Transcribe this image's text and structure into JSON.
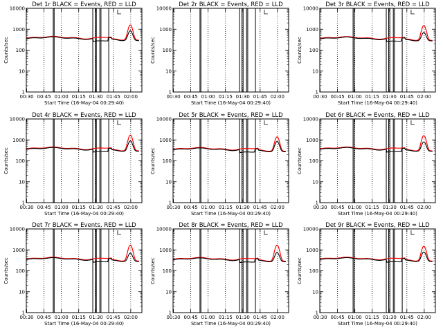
{
  "colors": {
    "events": "#000000",
    "lld": "#ff0000",
    "background": "#ffffff"
  },
  "chart_data": {
    "type": "line",
    "grid": "3x3",
    "shared": {
      "xlabel": "Start Time (16-May-04 00:29:40)",
      "ylabel": "Counts/sec",
      "x_tick_labels": [
        "00:30",
        "00:45",
        "01:00",
        "01:15",
        "01:30",
        "01:45",
        "02:00"
      ],
      "x_tick_minutes": [
        0.33,
        15.33,
        30.33,
        45.33,
        60.33,
        75.33,
        90.33
      ],
      "xlim_minutes": [
        0,
        100
      ],
      "y_scale": "log",
      "ylim": [
        1,
        10000
      ],
      "y_tick_labels": [
        "1",
        "10",
        "100",
        "1000",
        "10000"
      ],
      "y_tick_values": [
        1,
        10,
        100,
        1000,
        10000
      ],
      "dotted_vlines_minutes": [
        15.33,
        30.33,
        45.33,
        60.33,
        75.33,
        90.33
      ],
      "series_names": [
        "Events",
        "LLD"
      ]
    },
    "panels": [
      {
        "title": "Det 1r BLACK = Events, RED = LLD",
        "black_baseline": 380,
        "red_baseline": 400,
        "red_peak": 1600,
        "black_peak": 850,
        "has_data": true,
        "lines_minutes": [
          23.3,
          24.1,
          57.5,
          59.6,
          60.6,
          63.6,
          64.6,
          71.3
        ]
      },
      {
        "title": "Det 2r BLACK = Events, RED = LLD",
        "black_baseline": 0,
        "red_baseline": 0,
        "red_peak": 0,
        "black_peak": 0,
        "has_data": false,
        "lines_minutes": [
          23.3,
          24.1,
          57.5,
          59.6,
          60.6,
          63.6,
          64.6,
          71.3
        ]
      },
      {
        "title": "Det 3r BLACK = Events, RED = LLD",
        "black_baseline": 370,
        "red_baseline": 390,
        "red_peak": 1500,
        "black_peak": 700,
        "has_data": true,
        "lines_minutes": [
          28.8,
          29.8,
          57.5,
          59.6,
          60.6,
          63.6,
          64.6,
          71.3
        ]
      },
      {
        "title": "Det 4r BLACK = Events, RED = LLD",
        "black_baseline": 380,
        "red_baseline": 400,
        "red_peak": 1700,
        "black_peak": 900,
        "has_data": true,
        "lines_minutes": [
          23.3,
          24.1,
          57.5,
          59.6,
          60.6,
          63.6,
          64.6,
          71.3
        ]
      },
      {
        "title": "Det 5r BLACK = Events, RED = LLD",
        "black_baseline": 360,
        "red_baseline": 380,
        "red_peak": 1400,
        "black_peak": 850,
        "has_data": true,
        "lines_minutes": [
          23.3,
          24.1,
          57.5,
          59.6,
          60.6,
          63.6,
          64.6,
          71.3
        ]
      },
      {
        "title": "Det 6r BLACK = Events, RED = LLD",
        "black_baseline": 380,
        "red_baseline": 400,
        "red_peak": 1600,
        "black_peak": 800,
        "has_data": true,
        "lines_minutes": [
          28.8,
          29.8,
          57.5,
          59.6,
          60.6,
          63.6,
          64.6,
          71.3
        ]
      },
      {
        "title": "Det 7r BLACK = Events, RED = LLD",
        "black_baseline": 370,
        "red_baseline": 390,
        "red_peak": 1700,
        "black_peak": 700,
        "has_data": true,
        "lines_minutes": [
          23.3,
          24.1,
          57.5,
          59.6,
          60.6,
          63.6,
          64.6,
          71.3
        ]
      },
      {
        "title": "Det 8r BLACK = Events, RED = LLD",
        "black_baseline": 360,
        "red_baseline": 380,
        "red_peak": 1700,
        "black_peak": 750,
        "has_data": true,
        "lines_minutes": [
          23.3,
          24.1,
          57.5,
          59.6,
          60.6,
          63.6,
          64.6,
          71.3
        ]
      },
      {
        "title": "Det 9r BLACK = Events, RED = LLD",
        "black_baseline": 370,
        "red_baseline": 390,
        "red_peak": 1500,
        "black_peak": 800,
        "has_data": true,
        "lines_minutes": [
          28.8,
          29.8,
          57.5,
          59.6,
          60.6,
          63.6,
          64.6,
          71.3
        ]
      }
    ]
  }
}
